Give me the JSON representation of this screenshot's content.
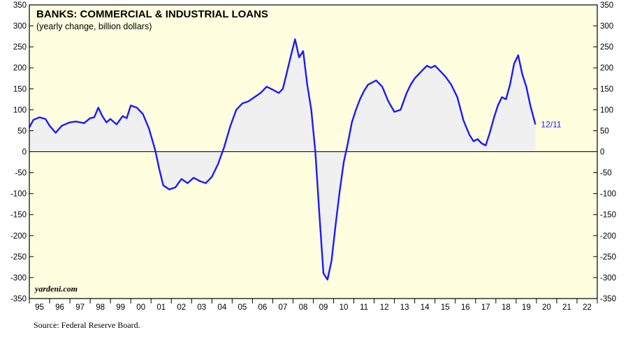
{
  "chart_data": {
    "type": "area",
    "title": "BANKS: COMMERCIAL & INDUSTRIAL LOANS",
    "subtitle": "(yearly change, billion dollars)",
    "xlabel": "",
    "ylabel": "",
    "ylim": [
      -350,
      350
    ],
    "xlim": [
      1995.0,
      2023.0
    ],
    "yticks": [
      350,
      300,
      250,
      200,
      150,
      100,
      50,
      0,
      -50,
      -100,
      -150,
      -200,
      -250,
      -300,
      -350
    ],
    "xtick_labels": [
      "95",
      "96",
      "97",
      "98",
      "99",
      "00",
      "01",
      "02",
      "03",
      "04",
      "05",
      "06",
      "07",
      "08",
      "09",
      "10",
      "11",
      "12",
      "13",
      "14",
      "15",
      "16",
      "17",
      "18",
      "19",
      "20",
      "21",
      "22"
    ],
    "grid": false,
    "series": [
      {
        "name": "",
        "color": "#1a1aff",
        "x": [
          1995.0,
          1995.2,
          1995.5,
          1995.8,
          1996.0,
          1996.3,
          1996.6,
          1997.0,
          1997.3,
          1997.7,
          1998.0,
          1998.2,
          1998.4,
          1998.6,
          1998.8,
          1999.0,
          1999.3,
          1999.6,
          1999.8,
          2000.0,
          2000.3,
          2000.6,
          2000.9,
          2001.2,
          2001.4,
          2001.6,
          2001.9,
          2002.2,
          2002.5,
          2002.8,
          2003.1,
          2003.4,
          2003.7,
          2004.0,
          2004.3,
          2004.6,
          2004.9,
          2005.2,
          2005.5,
          2005.8,
          2006.1,
          2006.4,
          2006.7,
          2007.0,
          2007.3,
          2007.5,
          2007.7,
          2007.9,
          2008.1,
          2008.3,
          2008.5,
          2008.7,
          2008.9,
          2009.1,
          2009.3,
          2009.5,
          2009.7,
          2009.9,
          2010.1,
          2010.3,
          2010.5,
          2010.7,
          2010.9,
          2011.1,
          2011.3,
          2011.5,
          2011.7,
          2011.9,
          2012.1,
          2012.4,
          2012.7,
          2013.0,
          2013.3,
          2013.6,
          2013.8,
          2014.0,
          2014.2,
          2014.4,
          2014.6,
          2014.8,
          2015.0,
          2015.2,
          2015.5,
          2015.8,
          2016.1,
          2016.4,
          2016.7,
          2016.9,
          2017.1,
          2017.3,
          2017.5,
          2017.7,
          2017.9,
          2018.1,
          2018.3,
          2018.5,
          2018.7,
          2018.9,
          2019.1,
          2019.3,
          2019.5,
          2019.7,
          2019.95
        ],
        "values": [
          58,
          76,
          82,
          78,
          62,
          45,
          62,
          70,
          72,
          68,
          80,
          82,
          105,
          85,
          70,
          78,
          65,
          85,
          80,
          110,
          105,
          90,
          55,
          5,
          -40,
          -80,
          -90,
          -85,
          -65,
          -75,
          -62,
          -70,
          -75,
          -60,
          -30,
          10,
          60,
          100,
          115,
          120,
          130,
          140,
          155,
          148,
          140,
          150,
          190,
          230,
          268,
          225,
          240,
          160,
          100,
          0,
          -150,
          -290,
          -305,
          -260,
          -175,
          -95,
          -25,
          20,
          70,
          100,
          125,
          145,
          160,
          165,
          170,
          155,
          120,
          95,
          100,
          140,
          160,
          175,
          185,
          195,
          205,
          200,
          205,
          195,
          180,
          160,
          130,
          75,
          40,
          25,
          30,
          20,
          15,
          45,
          80,
          110,
          130,
          125,
          160,
          210,
          230,
          185,
          155,
          110,
          65
        ]
      }
    ],
    "end_label": "12/11",
    "watermark": "yardeni.com",
    "source": "Source: Federal Reserve Board.",
    "colors": {
      "plot_background": "#ffffe0",
      "area_fill": "#f0f0f0",
      "line": "#1a1aff",
      "end_label": "#1a1aff"
    }
  }
}
